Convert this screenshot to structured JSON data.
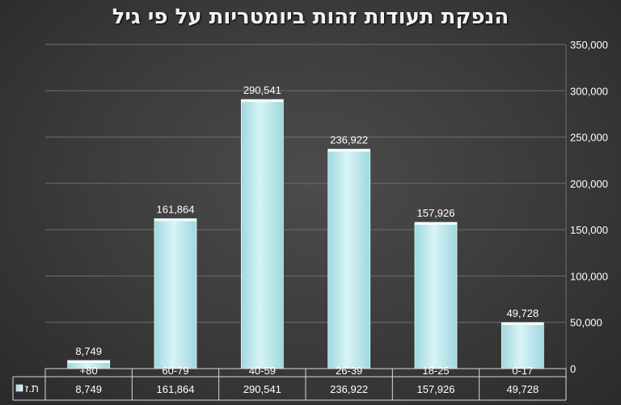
{
  "colors": {
    "bar_top": "#d8f4f6",
    "bar_bottom": "#9fd8de",
    "grid": "#6e6e6e",
    "text": "#ffffff"
  },
  "chart_data": {
    "type": "bar",
    "title": "הנפקת תעודות זהות ביומטריות על פי גיל",
    "categories": [
      "80+",
      "60-79",
      "40-59",
      "26-39",
      "18-25",
      "0-17"
    ],
    "category_display": [
      "+80",
      "60-79",
      "40-59",
      "26-39",
      "18-25",
      "0-17"
    ],
    "series": [
      {
        "name": "ת.ז",
        "values": [
          8749,
          161864,
          290541,
          236922,
          157926,
          49728
        ]
      }
    ],
    "value_labels": [
      "8,749",
      "161,864",
      "290,541",
      "236,922",
      "157,926",
      "49,728"
    ],
    "ylim": [
      0,
      350000
    ],
    "yticks": [
      0,
      50000,
      100000,
      150000,
      200000,
      250000,
      300000,
      350000
    ],
    "ytick_labels": [
      "0",
      "50,000",
      "100,000",
      "150,000",
      "200,000",
      "250,000",
      "300,000",
      "350,000"
    ],
    "yaxis_side": "right",
    "grid": true,
    "legend": "data-table-left",
    "data_table": true
  }
}
